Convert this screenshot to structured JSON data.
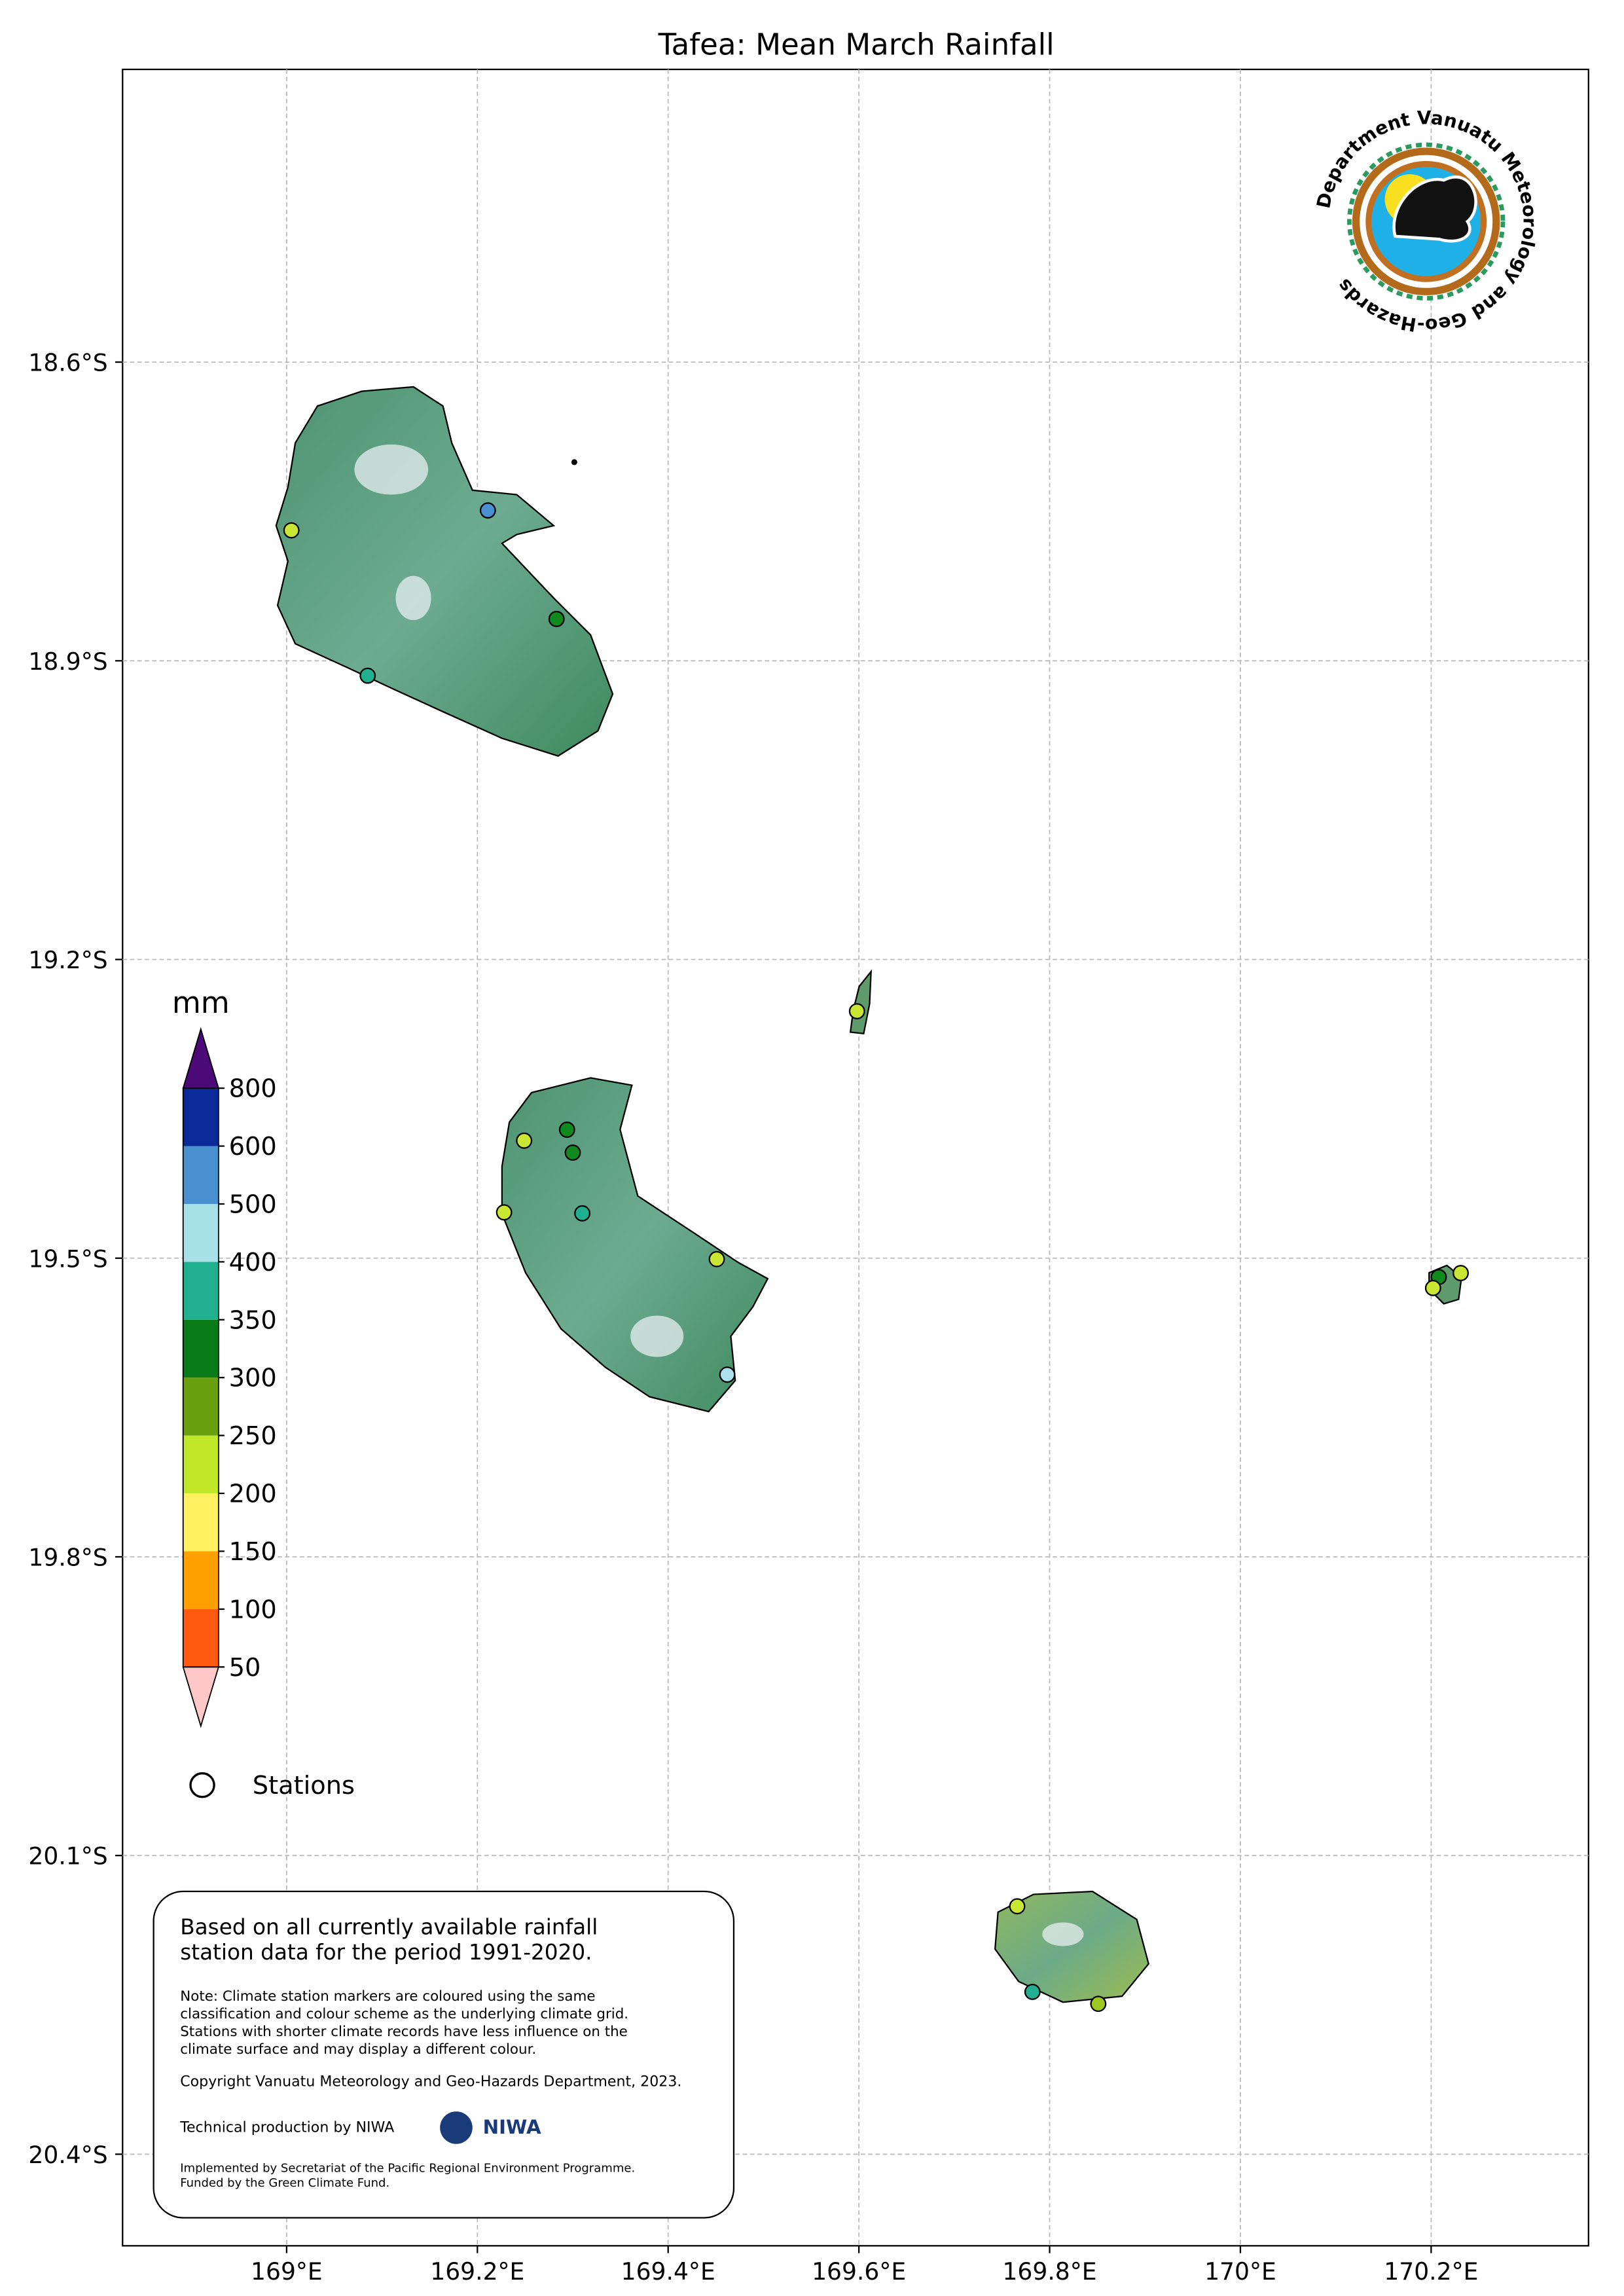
{
  "title": "Tafea: Mean March Rainfall",
  "map": {
    "xlim": [
      168.828,
      170.365
    ],
    "ylim": [
      -20.492,
      -18.306
    ],
    "grid": true,
    "xticks": [
      {
        "value": 169,
        "label": "169°E"
      },
      {
        "value": 169.2,
        "label": "169.2°E"
      },
      {
        "value": 169.4,
        "label": "169.4°E"
      },
      {
        "value": 169.6,
        "label": "169.6°E"
      },
      {
        "value": 169.8,
        "label": "169.8°E"
      },
      {
        "value": 170,
        "label": "170°E"
      },
      {
        "value": 170.2,
        "label": "170.2°E"
      }
    ],
    "yticks": [
      {
        "value": -18.6,
        "label": "18.6°S"
      },
      {
        "value": -18.9,
        "label": "18.9°S"
      },
      {
        "value": -19.2,
        "label": "19.2°S"
      },
      {
        "value": -19.5,
        "label": "19.5°S"
      },
      {
        "value": -19.8,
        "label": "19.8°S"
      },
      {
        "value": -20.1,
        "label": "20.1°S"
      },
      {
        "value": -20.4,
        "label": "20.4°S"
      }
    ]
  },
  "stations": [
    {
      "lon": 169.005,
      "lat": -18.769,
      "color": "#c8e632"
    },
    {
      "lon": 169.211,
      "lat": -18.749,
      "color": "#4a90d0"
    },
    {
      "lon": 169.283,
      "lat": -18.858,
      "color": "#108a1c"
    },
    {
      "lon": 169.085,
      "lat": -18.915,
      "color": "#20b090"
    },
    {
      "lon": 169.598,
      "lat": -19.252,
      "color": "#c8e632"
    },
    {
      "lon": 169.249,
      "lat": -19.382,
      "color": "#c8e632"
    },
    {
      "lon": 169.294,
      "lat": -19.371,
      "color": "#108a1c"
    },
    {
      "lon": 169.3,
      "lat": -19.394,
      "color": "#108a1c"
    },
    {
      "lon": 169.228,
      "lat": -19.454,
      "color": "#c8e632"
    },
    {
      "lon": 169.31,
      "lat": -19.455,
      "color": "#20b090"
    },
    {
      "lon": 169.451,
      "lat": -19.501,
      "color": "#c8e632"
    },
    {
      "lon": 169.462,
      "lat": -19.617,
      "color": "#aee0ec"
    },
    {
      "lon": 170.208,
      "lat": -19.519,
      "color": "#108a1c"
    },
    {
      "lon": 170.231,
      "lat": -19.515,
      "color": "#c8e632"
    },
    {
      "lon": 170.202,
      "lat": -19.53,
      "color": "#c8e632"
    },
    {
      "lon": 169.766,
      "lat": -20.151,
      "color": "#c8e632"
    },
    {
      "lon": 169.782,
      "lat": -20.237,
      "color": "#20b090"
    },
    {
      "lon": 169.851,
      "lat": -20.249,
      "color": "#9cc820"
    }
  ],
  "colorbar": {
    "unit": "mm",
    "ticks": [
      50,
      100,
      150,
      200,
      250,
      300,
      350,
      400,
      500,
      600,
      800
    ],
    "colors": [
      "#ff5a10",
      "#ffa000",
      "#fff060",
      "#c0e828",
      "#6aa010",
      "#087a18",
      "#20b090",
      "#a8e0e8",
      "#4a90d0",
      "#0a2a9a"
    ],
    "under_color": "#ffc8c8",
    "over_color": "#4b0a78"
  },
  "legend": {
    "label": "Stations"
  },
  "notes": {
    "summary": [
      "Based on all currently available rainfall",
      "station data for the period 1991-2020."
    ],
    "note": [
      "Note: Climate station markers are coloured using the same",
      "classification and colour scheme as the underlying climate grid.",
      "Stations with shorter climate records have less influence on the",
      "climate surface and may display a different colour."
    ],
    "copyright": "Copyright Vanuatu Meteorology and Geo-Hazards Department, 2023.",
    "production": "Technical production by NIWA",
    "niwa_logo": "NIWA",
    "funding": [
      "Implemented by Secretariat of the Pacific Regional Environment Programme.",
      "Funded by the Green Climate Fund."
    ]
  },
  "logo": {
    "text": "Department Vanuatu Meteorology and Geo-Hazards"
  }
}
